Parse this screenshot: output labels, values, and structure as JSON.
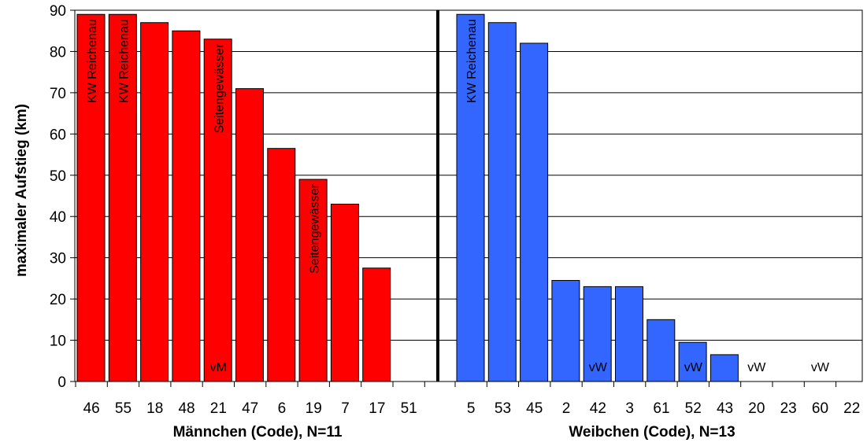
{
  "chart_data": {
    "type": "bar",
    "ylabel": "maximaler Aufstieg (km)",
    "ylim": [
      0,
      90
    ],
    "yticks": [
      0,
      10,
      20,
      30,
      40,
      50,
      60,
      70,
      80,
      90
    ],
    "grid": true,
    "groups": [
      {
        "xlabel": "Männchen (Code), N=11",
        "color": "#ff0000",
        "categories": [
          "46",
          "55",
          "18",
          "48",
          "21",
          "47",
          "6",
          "19",
          "7",
          "17",
          "51"
        ],
        "values": [
          89,
          89,
          87,
          85,
          83,
          71,
          56.5,
          49,
          43,
          27.5,
          0
        ],
        "annotations": [
          "KW Reichenau",
          "KW Reichenau",
          "",
          "",
          "Seitengewässer",
          "",
          "",
          "Seitengewässer",
          "",
          "",
          ""
        ],
        "bottom_labels": [
          "",
          "",
          "",
          "",
          "vM",
          "",
          "",
          "",
          "",
          "",
          ""
        ]
      },
      {
        "xlabel": "Weibchen (Code), N=13",
        "color": "#3366ff",
        "categories": [
          "5",
          "53",
          "45",
          "2",
          "42",
          "3",
          "61",
          "52",
          "43",
          "20",
          "23",
          "60",
          "22"
        ],
        "values": [
          89,
          87,
          82,
          24.5,
          23,
          23,
          15,
          9.5,
          6.5,
          0,
          0,
          0,
          0
        ],
        "annotations": [
          "KW Reichenau",
          "",
          "",
          "",
          "",
          "",
          "",
          "",
          "",
          "",
          "",
          "",
          ""
        ],
        "bottom_labels": [
          "",
          "",
          "",
          "",
          "vW",
          "",
          "",
          "vW",
          "",
          "vW",
          "",
          "vW",
          ""
        ]
      }
    ]
  }
}
